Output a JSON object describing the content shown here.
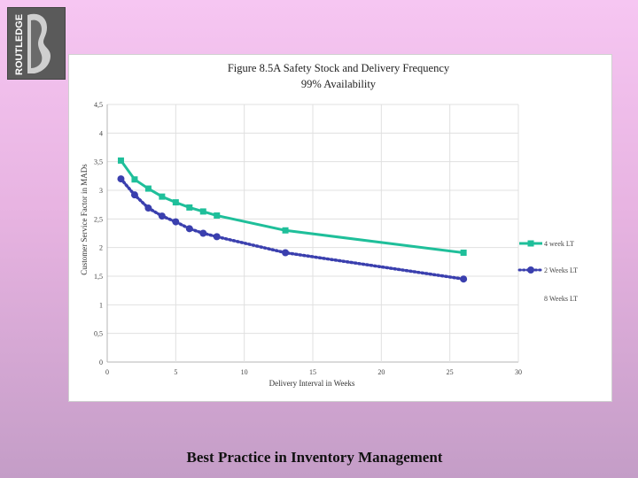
{
  "logo": {
    "text": "ROUTLEDGE"
  },
  "footer": {
    "title": "Best Practice in Inventory Management"
  },
  "colors": {
    "series_4wk": "#1fbf9a",
    "series_2wk": "#3a3fae",
    "grid": "#e0e0e0"
  },
  "chart_data": {
    "type": "line",
    "title": "Figure 8.5A Safety Stock and Delivery Frequency",
    "subtitle": "99% Availability",
    "xlabel": "Delivery Interval in Weeks",
    "ylabel": "Customer Service Factor in MADs",
    "xlim": [
      0,
      30
    ],
    "ylim": [
      0,
      4.5
    ],
    "xticks": [
      "0",
      "5",
      "10",
      "15",
      "20",
      "25",
      "30"
    ],
    "yticks": [
      "0",
      "0,5",
      "1",
      "1,5",
      "2",
      "2,5",
      "3",
      "3,5",
      "4",
      "4,5"
    ],
    "grid": true,
    "legend_position": "right",
    "series": [
      {
        "name": "4 week LT",
        "style": "solid",
        "x": [
          1,
          2,
          3,
          4,
          5,
          6,
          7,
          8,
          13,
          26
        ],
        "y": [
          3.52,
          3.19,
          3.03,
          2.89,
          2.79,
          2.7,
          2.63,
          2.56,
          2.3,
          1.91
        ]
      },
      {
        "name": "2 Weeks LT",
        "style": "dotted",
        "x": [
          1,
          2,
          3,
          4,
          5,
          6,
          7,
          8,
          13,
          26
        ],
        "y": [
          3.2,
          2.92,
          2.69,
          2.55,
          2.45,
          2.33,
          2.25,
          2.19,
          1.91,
          1.45
        ]
      },
      {
        "name": "8 Weeks LT",
        "style": "solid",
        "x": [],
        "y": []
      }
    ]
  }
}
